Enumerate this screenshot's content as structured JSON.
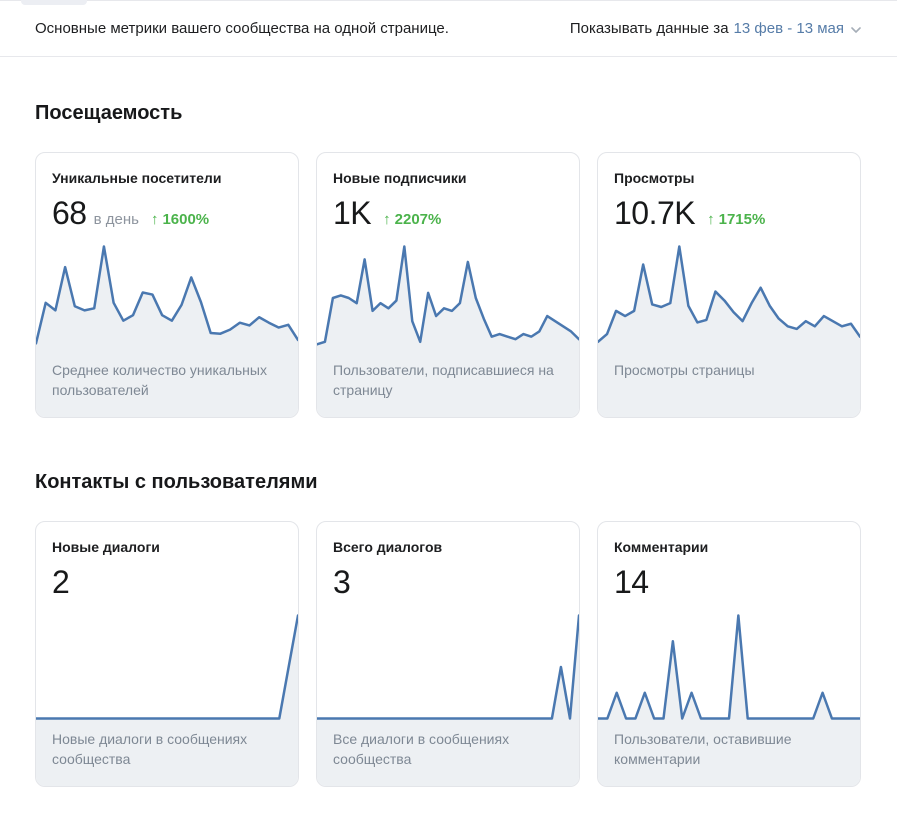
{
  "topbar": {
    "subtitle": "Основные метрики вашего сообщества на одной странице.",
    "period_label": "Показывать данные за",
    "period_value": "13 фев - 13 мая"
  },
  "colors": {
    "chart_line": "#4a78b0",
    "chart_fill": "#edf0f3",
    "green_trend": "#4bb34b",
    "link_blue": "#567ca8",
    "card_border": "#e3e5e9",
    "footer_bg": "#edf0f3",
    "muted_text": "#7e8894"
  },
  "icons": {
    "chevron_down": "chevron-down-icon",
    "arrow_up": "↑"
  },
  "sections": [
    {
      "title": "Посещаемость",
      "cards": [
        {
          "title": "Уникальные посетители",
          "value": "68",
          "value_suffix": "в день",
          "trend_arrow": "↑",
          "trend": "1600%",
          "footer": "Среднее количество уникальных пользователей"
        },
        {
          "title": "Новые подписчики",
          "value": "1K",
          "trend_arrow": "↑",
          "trend": "2207%",
          "footer": "Пользователи, подписавшиеся на страницу"
        },
        {
          "title": "Просмотры",
          "value": "10.7K",
          "trend_arrow": "↑",
          "trend": "1715%",
          "footer": "Просмотры страницы"
        }
      ]
    },
    {
      "title": "Контакты с пользователями",
      "cards": [
        {
          "title": "Новые диалоги",
          "value": "2",
          "footer": "Новые диалоги в сообщениях сообщества"
        },
        {
          "title": "Всего диалогов",
          "value": "3",
          "footer": "Все диалоги в сообщениях сообщества"
        },
        {
          "title": "Комментарии",
          "value": "14",
          "footer": "Пользователи, оставившие комментарии"
        }
      ]
    }
  ],
  "chart_data": [
    {
      "type": "area",
      "title": "Уникальные посетители",
      "period": "13 фев - 13 мая",
      "y_min": 0,
      "axes_hidden": true,
      "values": [
        9,
        68,
        57,
        120,
        63,
        57,
        60,
        150,
        68,
        42,
        50,
        83,
        80,
        50,
        42,
        65,
        105,
        69,
        24,
        23,
        29,
        39,
        35,
        47,
        39,
        32,
        36,
        14
      ]
    },
    {
      "type": "area",
      "title": "Новые подписчики",
      "period": "13 фев - 13 мая",
      "y_min": 0,
      "axes_hidden": true,
      "values": [
        2,
        3,
        20,
        21,
        20,
        18,
        35,
        15,
        18,
        16,
        19,
        40,
        11,
        3,
        22,
        13,
        16,
        15,
        18,
        34,
        20,
        12,
        5,
        6,
        5,
        4,
        6,
        5,
        7,
        13,
        11,
        9,
        7,
        4
      ]
    },
    {
      "type": "area",
      "title": "Просмотры",
      "period": "13 фев - 13 мая",
      "y_min": 0,
      "axes_hidden": true,
      "values": [
        30,
        60,
        150,
        130,
        150,
        330,
        175,
        165,
        180,
        400,
        170,
        105,
        115,
        225,
        190,
        145,
        110,
        180,
        240,
        170,
        120,
        90,
        80,
        110,
        90,
        130,
        110,
        90,
        100,
        50
      ]
    },
    {
      "type": "area",
      "title": "Новые диалоги",
      "period": "13 фев - 13 мая",
      "y_min": 0,
      "axes_hidden": true,
      "values": [
        0,
        0,
        0,
        0,
        0,
        0,
        0,
        0,
        0,
        0,
        0,
        0,
        0,
        0,
        2
      ]
    },
    {
      "type": "area",
      "title": "Всего диалогов",
      "period": "13 фев - 13 мая",
      "y_min": 0,
      "axes_hidden": true,
      "values": [
        0,
        0,
        0,
        0,
        0,
        0,
        0,
        0,
        0,
        0,
        0,
        0,
        0,
        0,
        0,
        0,
        0,
        0,
        0,
        0,
        0,
        0,
        0,
        0,
        0,
        0,
        0,
        1,
        0,
        2
      ]
    },
    {
      "type": "area",
      "title": "Комментарии",
      "period": "13 фев - 13 мая",
      "y_min": 0,
      "axes_hidden": true,
      "values": [
        0,
        0,
        1,
        0,
        0,
        1,
        0,
        0,
        3,
        0,
        1,
        0,
        0,
        0,
        0,
        4,
        0,
        0,
        0,
        0,
        0,
        0,
        0,
        0,
        1,
        0,
        0,
        0,
        0
      ]
    }
  ]
}
